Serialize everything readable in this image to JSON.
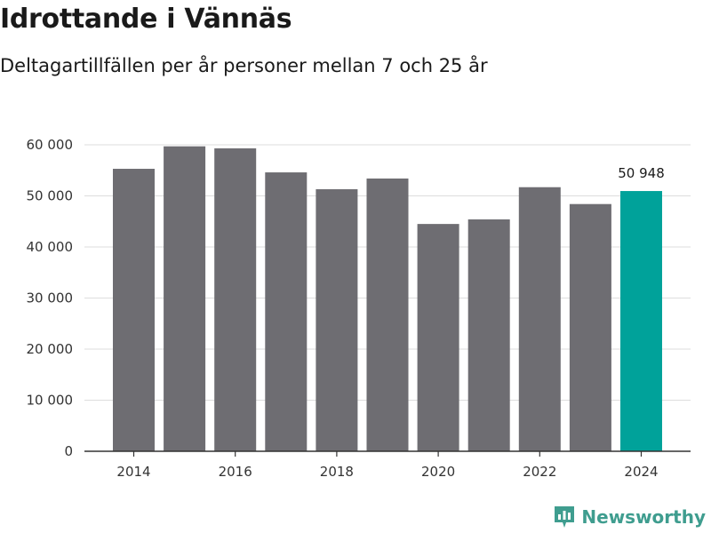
{
  "brand": {
    "name": "Newsworthy",
    "color": "#3f9d8f"
  },
  "colors": {
    "bar": "#6e6d72",
    "highlight": "#00a29a",
    "grid": "#dddddd",
    "axis": "#333333"
  },
  "chart_data": {
    "type": "bar",
    "title": "Idrottande i Vännäs",
    "subtitle": "Deltagartillfällen per år personer mellan 7 och 25 år",
    "categories": [
      2014,
      2015,
      2016,
      2017,
      2018,
      2019,
      2020,
      2021,
      2022,
      2023,
      2024
    ],
    "values": [
      55300,
      59700,
      59300,
      54600,
      51300,
      53400,
      44500,
      45400,
      51700,
      48400,
      50948
    ],
    "highlight_index": 10,
    "highlight_label": "50 948",
    "x_tick_labels": [
      "2014",
      "2016",
      "2018",
      "2020",
      "2022",
      "2024"
    ],
    "x_tick_values": [
      2014,
      2016,
      2018,
      2020,
      2022,
      2024
    ],
    "y_ticks": [
      0,
      10000,
      20000,
      30000,
      40000,
      50000,
      60000
    ],
    "y_tick_labels": [
      "0",
      "10 000",
      "20 000",
      "30 000",
      "40 000",
      "50 000",
      "60 000"
    ],
    "ylim": [
      0,
      60000
    ],
    "xlabel": "",
    "ylabel": "",
    "grid": true
  }
}
